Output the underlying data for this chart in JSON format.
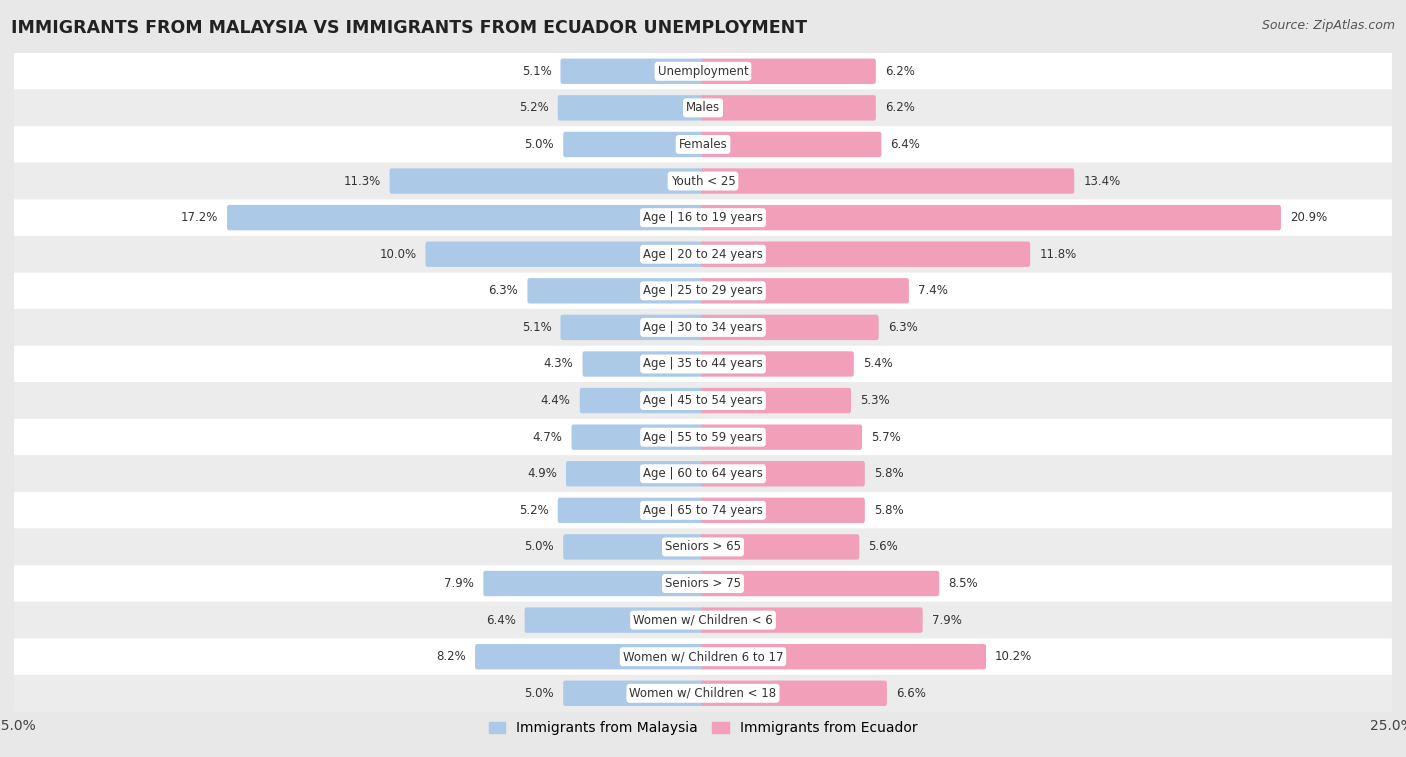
{
  "title": "IMMIGRANTS FROM MALAYSIA VS IMMIGRANTS FROM ECUADOR UNEMPLOYMENT",
  "source": "Source: ZipAtlas.com",
  "categories": [
    "Unemployment",
    "Males",
    "Females",
    "Youth < 25",
    "Age | 16 to 19 years",
    "Age | 20 to 24 years",
    "Age | 25 to 29 years",
    "Age | 30 to 34 years",
    "Age | 35 to 44 years",
    "Age | 45 to 54 years",
    "Age | 55 to 59 years",
    "Age | 60 to 64 years",
    "Age | 65 to 74 years",
    "Seniors > 65",
    "Seniors > 75",
    "Women w/ Children < 6",
    "Women w/ Children 6 to 17",
    "Women w/ Children < 18"
  ],
  "malaysia_values": [
    5.1,
    5.2,
    5.0,
    11.3,
    17.2,
    10.0,
    6.3,
    5.1,
    4.3,
    4.4,
    4.7,
    4.9,
    5.2,
    5.0,
    7.9,
    6.4,
    8.2,
    5.0
  ],
  "ecuador_values": [
    6.2,
    6.2,
    6.4,
    13.4,
    20.9,
    11.8,
    7.4,
    6.3,
    5.4,
    5.3,
    5.7,
    5.8,
    5.8,
    5.6,
    8.5,
    7.9,
    10.2,
    6.6
  ],
  "malaysia_color": "#adc9e8",
  "ecuador_color": "#f2a0ba",
  "axis_max": 25.0,
  "background_color": "#e8e8e8",
  "row_bg_white": "#ffffff",
  "row_bg_gray": "#ececec",
  "label_fontsize": 8.5,
  "value_fontsize": 8.5,
  "title_fontsize": 12.5
}
